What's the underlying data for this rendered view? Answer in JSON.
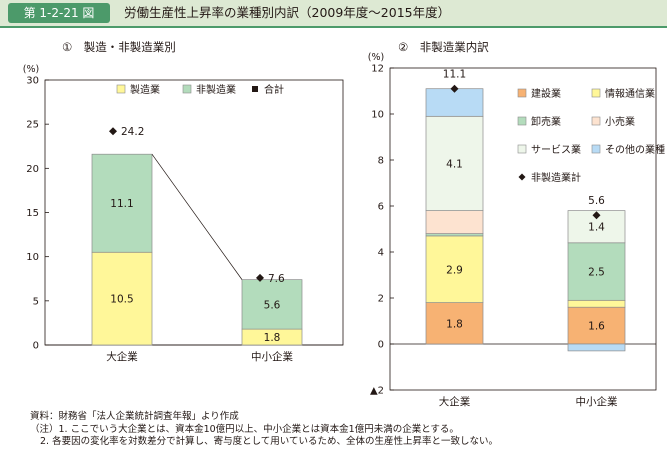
{
  "header": {
    "badge": "第 1-2-21 図",
    "title": "労働生産性上昇率の業種別内訳（2009年度〜2015年度）"
  },
  "chart_data": [
    {
      "type": "bar",
      "stacked": true,
      "title": "①　製造・非製造業別",
      "ylabel": "(%)",
      "ylim": [
        0,
        30
      ],
      "yticks": [
        0,
        5,
        10,
        15,
        20,
        25,
        30
      ],
      "categories": [
        "大企業",
        "中小企業"
      ],
      "series": [
        {
          "name": "製造業",
          "values": [
            10.5,
            1.8
          ],
          "color": "#fff799",
          "labels": [
            "10.5",
            "1.8"
          ]
        },
        {
          "name": "非製造業",
          "values": [
            11.1,
            5.6
          ],
          "color": "#b3dcbc",
          "labels": [
            "11.1",
            "5.6"
          ]
        }
      ],
      "markers": {
        "name": "合計",
        "values": [
          24.2,
          7.6
        ],
        "labels": [
          "24.2",
          "7.6"
        ]
      },
      "legend": [
        "製造業",
        "非製造業",
        "合計"
      ],
      "legend_position": "top-right"
    },
    {
      "type": "bar",
      "stacked": true,
      "title": "②　非製造業内訳",
      "ylabel": "(%)",
      "ylim": [
        -2,
        12
      ],
      "yticks": [
        -2,
        0,
        2,
        4,
        6,
        8,
        10,
        12
      ],
      "categories": [
        "大企業",
        "中小企業"
      ],
      "series": [
        {
          "name": "建設業",
          "values": [
            1.8,
            1.6
          ],
          "color": "#f7b273",
          "labels": [
            "1.8",
            "1.6"
          ]
        },
        {
          "name": "情報通信業",
          "values": [
            2.9,
            0.3
          ],
          "color": "#fff799",
          "labels": [
            "2.9",
            ""
          ]
        },
        {
          "name": "卸売業",
          "values": [
            0.1,
            2.5
          ],
          "color": "#b3dcbc",
          "labels": [
            "",
            "2.5"
          ]
        },
        {
          "name": "小売業",
          "values": [
            1.0,
            0.0
          ],
          "color": "#fde3d0",
          "labels": [
            "",
            ""
          ]
        },
        {
          "name": "サービス業",
          "values": [
            4.1,
            1.4
          ],
          "color": "#eef6ea",
          "labels": [
            "4.1",
            "1.4"
          ]
        },
        {
          "name": "その他の業種",
          "values": [
            1.2,
            -0.3
          ],
          "color": "#b8dbf5",
          "labels": [
            "",
            ""
          ]
        }
      ],
      "markers": {
        "name": "非製造業計",
        "values": [
          11.1,
          5.6
        ],
        "labels": [
          "11.1",
          "5.6"
        ]
      },
      "legend": [
        "建設業",
        "情報通信業",
        "卸売業",
        "小売業",
        "サービス業",
        "その他の業種",
        "非製造業計"
      ],
      "legend_position": "top-right"
    }
  ],
  "notes": [
    "資料：財務省「法人企業統計調査年報」より作成",
    "（注）1. ここでいう大企業とは、資本金10億円以上、中小企業とは資本金1億円未満の企業とする。",
    "2. 各要因の変化率を対数差分で計算し、寄与度として用いているため、全体の生産性上昇率と一致しない。"
  ]
}
